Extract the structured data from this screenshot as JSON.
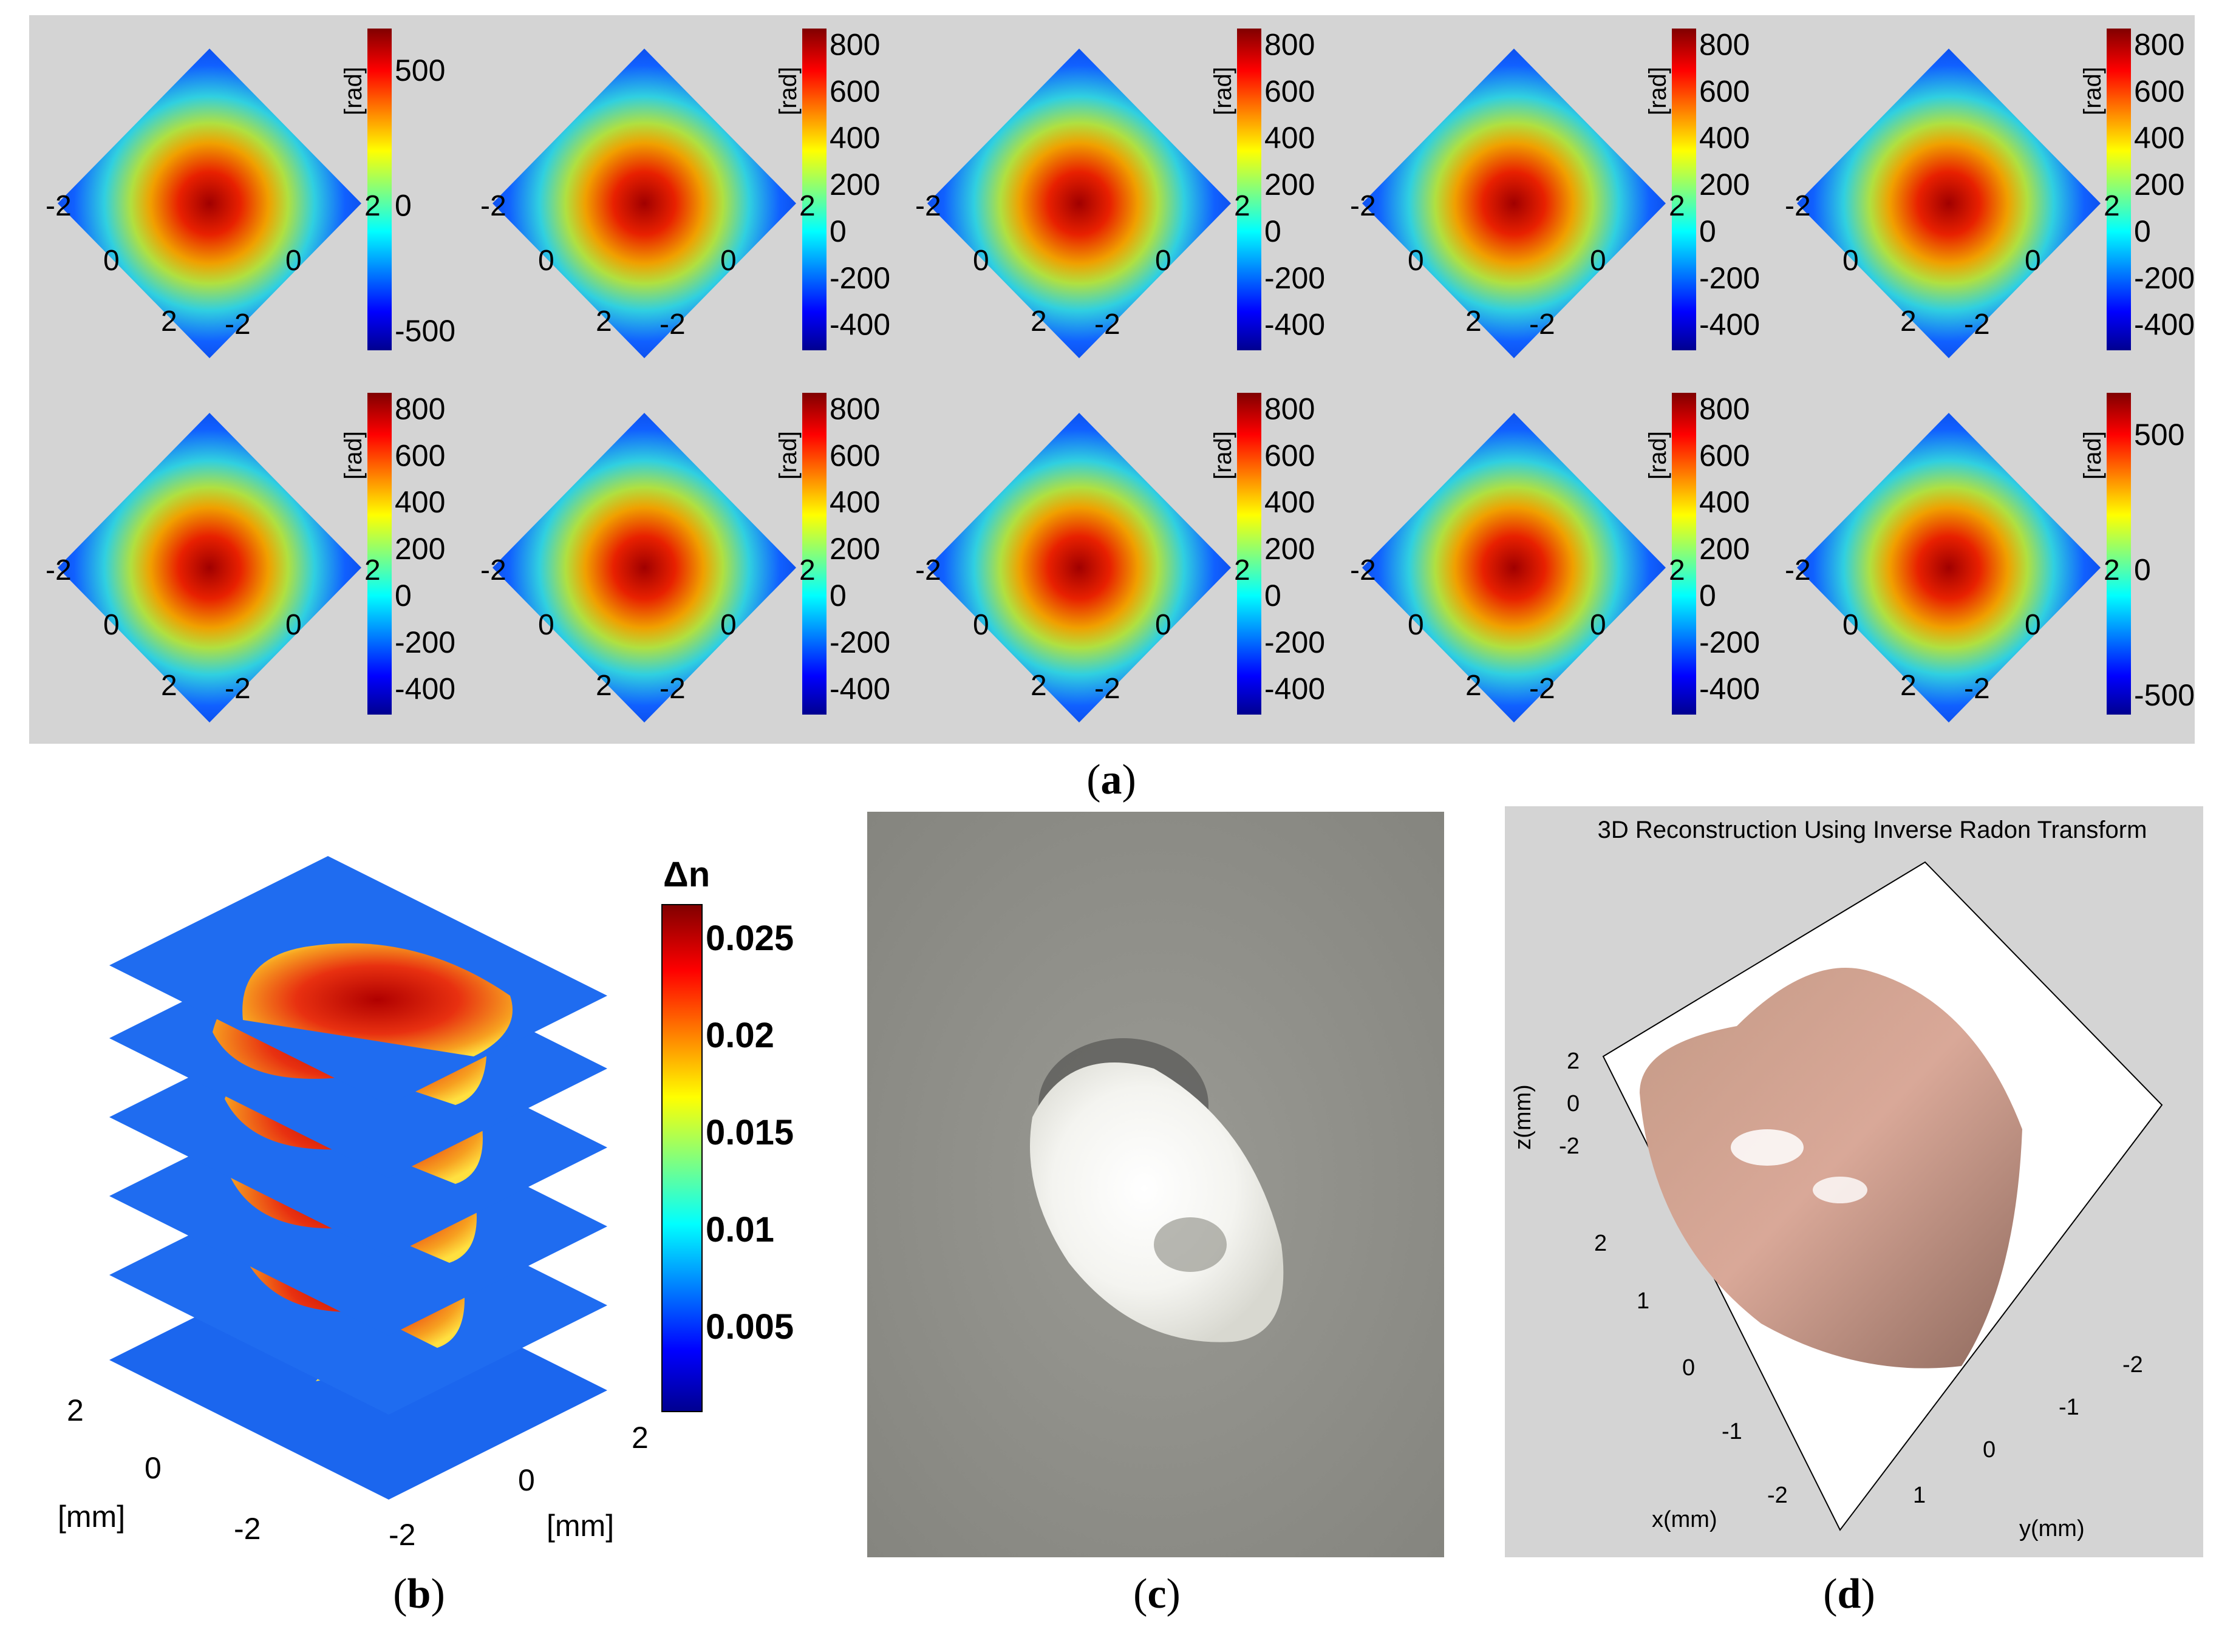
{
  "panel_a": {
    "caption": "a",
    "plots": [
      {
        "unit": "[rad]",
        "cb_ticks": [
          "500",
          "0",
          "-500"
        ],
        "axis_ticks": [
          "-2",
          "2",
          "0",
          "0",
          "2",
          "-2"
        ]
      },
      {
        "unit": "[rad]",
        "cb_ticks": [
          "800",
          "600",
          "400",
          "200",
          "0",
          "-200",
          "-400"
        ],
        "axis_ticks": [
          "-2",
          "2",
          "0",
          "0",
          "2",
          "-2"
        ]
      },
      {
        "unit": "[rad]",
        "cb_ticks": [
          "800",
          "600",
          "400",
          "200",
          "0",
          "-200",
          "-400"
        ],
        "axis_ticks": [
          "-2",
          "2",
          "0",
          "0",
          "2",
          "-2"
        ]
      },
      {
        "unit": "[rad]",
        "cb_ticks": [
          "800",
          "600",
          "400",
          "200",
          "0",
          "-200",
          "-400"
        ],
        "axis_ticks": [
          "-2",
          "2",
          "0",
          "0",
          "2",
          "-2"
        ]
      },
      {
        "unit": "[rad]",
        "cb_ticks": [
          "800",
          "600",
          "400",
          "200",
          "0",
          "-200",
          "-400"
        ],
        "axis_ticks": [
          "-2",
          "2",
          "0",
          "0",
          "2",
          "-2"
        ]
      },
      {
        "unit": "[rad]",
        "cb_ticks": [
          "800",
          "600",
          "400",
          "200",
          "0",
          "-200",
          "-400"
        ],
        "axis_ticks": [
          "-2",
          "2",
          "0",
          "0",
          "2",
          "-2"
        ]
      },
      {
        "unit": "[rad]",
        "cb_ticks": [
          "800",
          "600",
          "400",
          "200",
          "0",
          "-200",
          "-400"
        ],
        "axis_ticks": [
          "-2",
          "2",
          "0",
          "0",
          "2",
          "-2"
        ]
      },
      {
        "unit": "[rad]",
        "cb_ticks": [
          "800",
          "600",
          "400",
          "200",
          "0",
          "-200",
          "-400"
        ],
        "axis_ticks": [
          "-2",
          "2",
          "0",
          "0",
          "2",
          "-2"
        ]
      },
      {
        "unit": "[rad]",
        "cb_ticks": [
          "800",
          "600",
          "400",
          "200",
          "0",
          "-200",
          "-400"
        ],
        "axis_ticks": [
          "-2",
          "2",
          "0",
          "0",
          "2",
          "-2"
        ]
      },
      {
        "unit": "[rad]",
        "cb_ticks": [
          "500",
          "0",
          "-500"
        ],
        "axis_ticks": [
          "-2",
          "2",
          "0",
          "0",
          "2",
          "-2"
        ]
      }
    ]
  },
  "panel_b": {
    "caption": "b",
    "colorbar_label": "Δn",
    "colorbar_ticks": [
      "0.025",
      "0.02",
      "0.015",
      "0.01",
      "0.005"
    ],
    "axis_ticks": [
      "2",
      "0",
      "-2",
      "-2",
      "0",
      "2"
    ],
    "axis_units": [
      "[mm]",
      "[mm]"
    ]
  },
  "panel_c": {
    "caption": "c"
  },
  "panel_d": {
    "caption": "d",
    "title": "3D Reconstruction Using Inverse Radon Transform",
    "z_label": "z(mm)",
    "z_ticks": [
      "2",
      "0",
      "-2"
    ],
    "x_label": "x(mm)",
    "x_ticks": [
      "2",
      "1",
      "0",
      "-1",
      "-2"
    ],
    "y_label": "y(mm)",
    "y_ticks": [
      "1",
      "0",
      "-1",
      "-2"
    ]
  },
  "colors": {
    "panel_background": "#d4d4d4",
    "colormap": [
      "#00008f",
      "#0000ff",
      "#00ffff",
      "#ffff00",
      "#ff0000",
      "#800000"
    ],
    "tissue": "#c8907f"
  }
}
